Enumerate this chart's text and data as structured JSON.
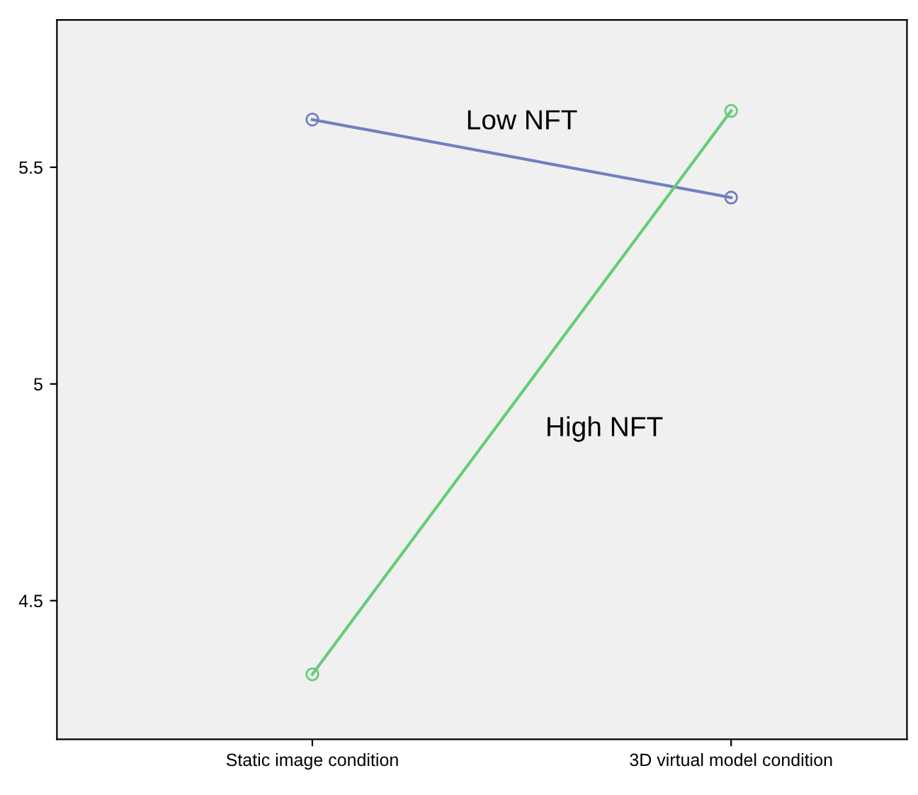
{
  "chart_data": {
    "type": "line",
    "categories": [
      "Static image condition",
      "3D virtual model condition"
    ],
    "series": [
      {
        "name": "Low NFT",
        "color": "#7080c0",
        "values": [
          5.61,
          5.43
        ]
      },
      {
        "name": "High NFT",
        "color": "#66cc77",
        "values": [
          4.33,
          5.63
        ]
      }
    ],
    "ylim": [
      4.18,
      5.84
    ],
    "yticks": [
      4.5,
      5,
      5.5
    ],
    "marker": "circle",
    "grid": false,
    "legend": false
  }
}
